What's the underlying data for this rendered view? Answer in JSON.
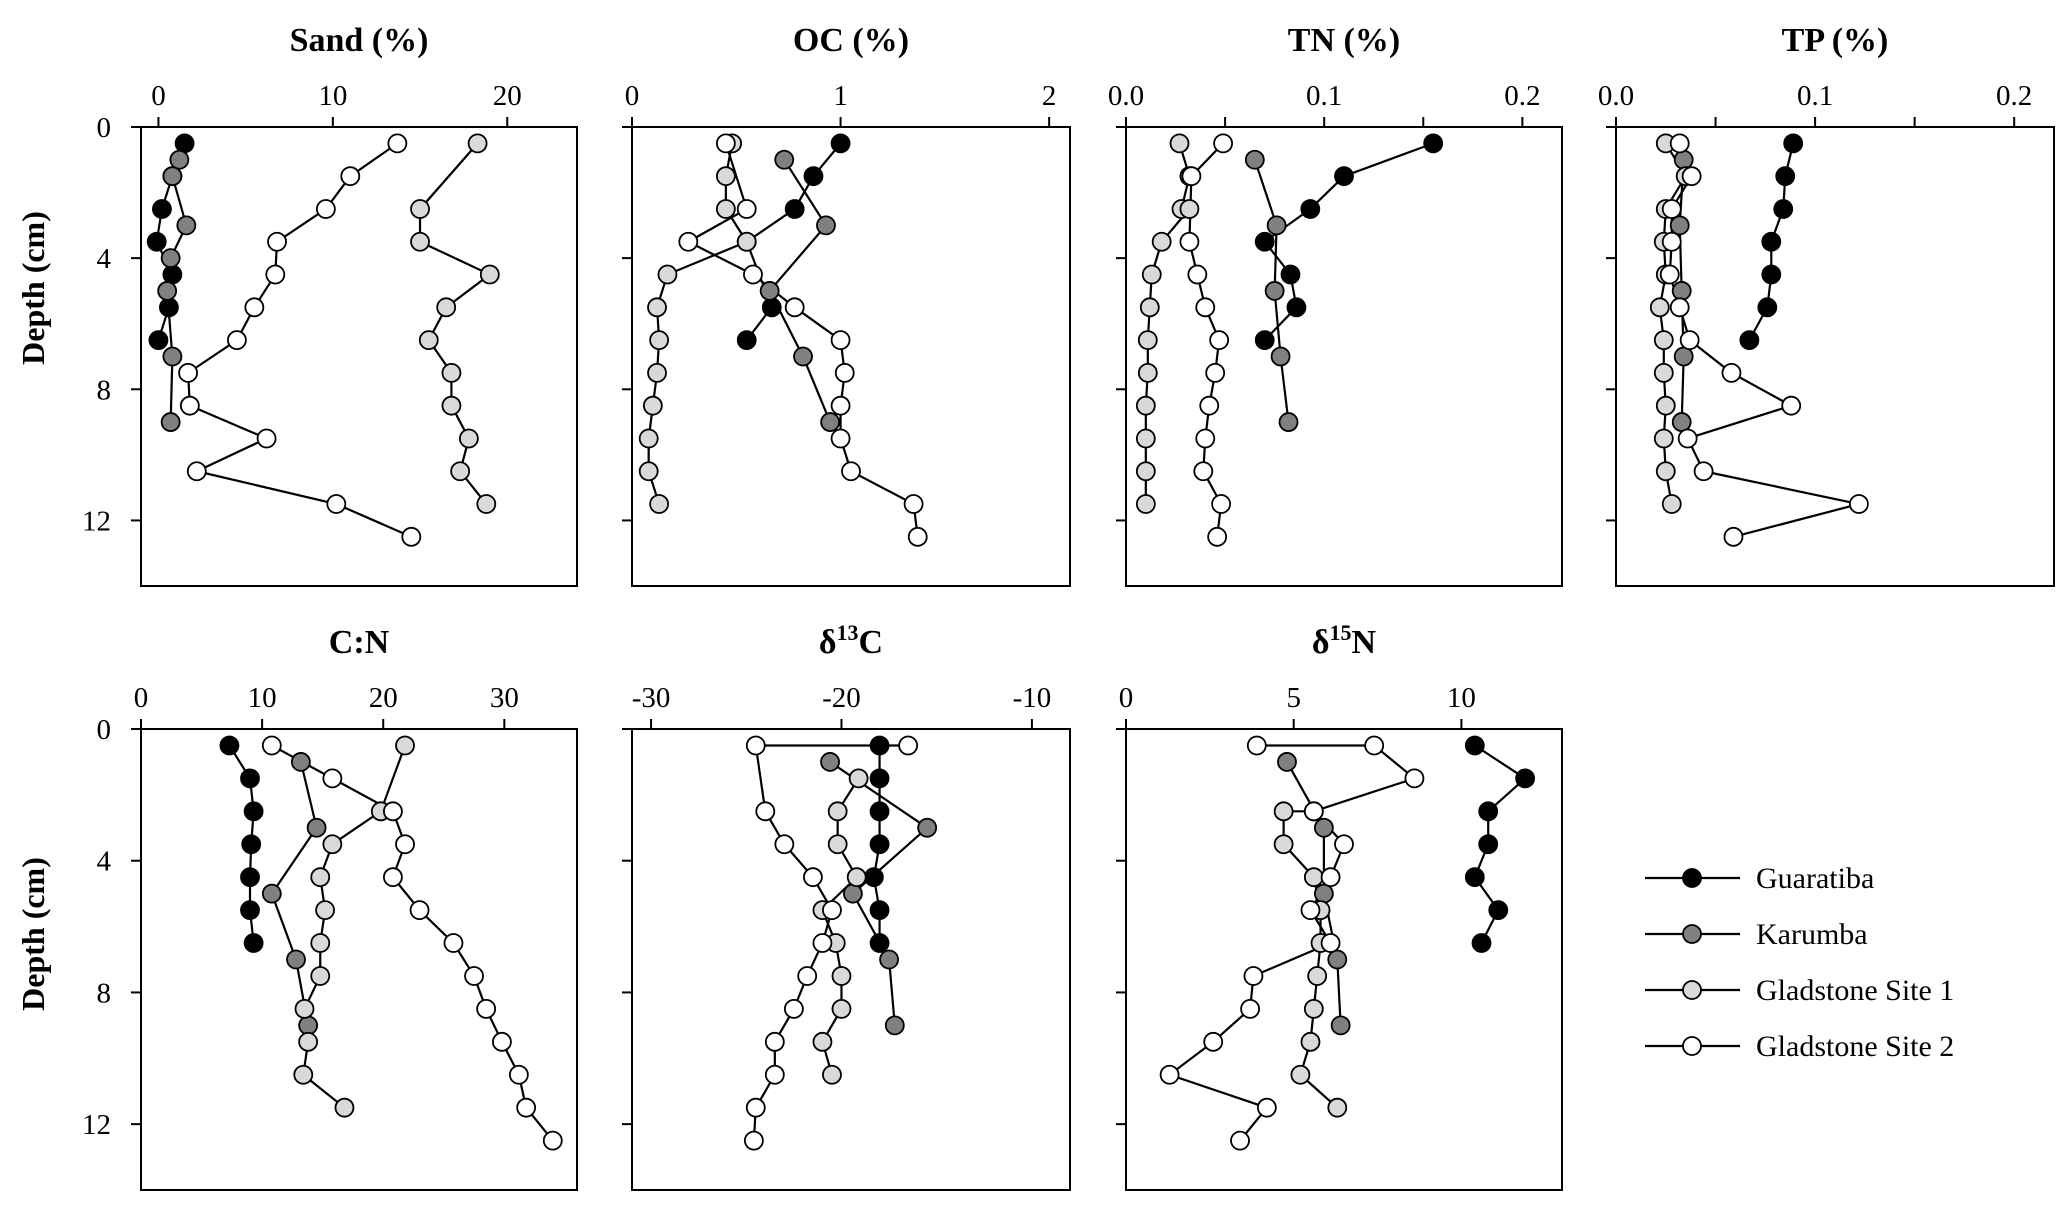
{
  "chart_data": {
    "type": "line",
    "shared_y": {
      "label": "Depth (cm)",
      "range": [
        0,
        14
      ],
      "ticks": [
        0,
        4,
        8,
        12
      ],
      "inverted": true
    },
    "legend": {
      "placement": "right",
      "entries": [
        {
          "name": "Guaratiba",
          "color": "#000000"
        },
        {
          "name": "Karumba",
          "color": "#808080"
        },
        {
          "name": "Gladstone Site 1",
          "color": "#d9d9d9"
        },
        {
          "name": "Gladstone Site 2",
          "color": "#ffffff"
        }
      ]
    },
    "panels": [
      {
        "id": "sand",
        "title_main": "Sand (%)",
        "title_sup": "",
        "title_after": "",
        "xlim": [
          -1,
          24
        ],
        "xticks": [
          0,
          10,
          20
        ],
        "xtick_labels": [
          "0",
          "10",
          "20"
        ],
        "series": [
          {
            "name": "Guaratiba",
            "x": [
              1.5,
              0.8,
              0.2,
              -0.1,
              0.8,
              0.6,
              0.0
            ],
            "y": [
              0.5,
              1.5,
              2.5,
              3.5,
              4.5,
              5.5,
              6.5
            ]
          },
          {
            "name": "Karumba",
            "x": [
              1.2,
              0.8,
              1.6,
              0.7,
              0.5,
              0.8,
              0.7
            ],
            "y": [
              1.0,
              1.5,
              3.0,
              4.0,
              5.0,
              7.0,
              9.0
            ]
          },
          {
            "name": "Gladstone Site 1",
            "x": [
              18.3,
              15.0,
              15.0,
              19.0,
              16.5,
              15.5,
              16.8,
              16.8,
              17.8,
              17.3,
              18.8
            ],
            "y": [
              0.5,
              2.5,
              3.5,
              4.5,
              5.5,
              6.5,
              7.5,
              8.5,
              9.5,
              10.5,
              11.5
            ]
          },
          {
            "name": "Gladstone Site 2",
            "x": [
              13.7,
              11.0,
              9.6,
              6.8,
              6.7,
              5.5,
              4.5,
              1.7,
              1.8,
              6.2,
              2.2,
              10.2,
              14.5
            ],
            "y": [
              0.5,
              1.5,
              2.5,
              3.5,
              4.5,
              5.5,
              6.5,
              7.5,
              8.5,
              9.5,
              10.5,
              11.5,
              12.5
            ]
          }
        ]
      },
      {
        "id": "oc",
        "title_main": "OC (%)",
        "title_sup": "",
        "title_after": "",
        "xlim": [
          0,
          2.1
        ],
        "xticks": [
          0,
          1,
          2
        ],
        "xtick_labels": [
          "0",
          "1",
          "2"
        ],
        "series": [
          {
            "name": "Guaratiba",
            "x": [
              1.0,
              0.87,
              0.78,
              0.55,
              0.67,
              0.55
            ],
            "y": [
              0.5,
              1.5,
              2.5,
              3.5,
              5.5,
              6.5
            ]
          },
          {
            "name": "Karumba",
            "x": [
              0.73,
              0.93,
              0.66,
              0.82,
              0.95
            ],
            "y": [
              1.0,
              3.0,
              5.0,
              7.0,
              9.0
            ]
          },
          {
            "name": "Gladstone Site 1",
            "x": [
              0.48,
              0.45,
              0.45,
              0.55,
              0.17,
              0.12,
              0.13,
              0.12,
              0.1,
              0.08,
              0.08,
              0.13
            ],
            "y": [
              0.5,
              1.5,
              2.5,
              3.5,
              4.5,
              5.5,
              6.5,
              7.5,
              8.5,
              9.5,
              10.5,
              11.5
            ]
          },
          {
            "name": "Gladstone Site 2",
            "x": [
              0.45,
              0.55,
              0.27,
              0.58,
              0.78,
              1.0,
              1.02,
              1.0,
              1.0,
              1.05,
              1.35,
              1.37
            ],
            "y": [
              0.5,
              2.5,
              3.5,
              4.5,
              5.5,
              6.5,
              7.5,
              8.5,
              9.5,
              10.5,
              11.5,
              12.5
            ]
          }
        ]
      },
      {
        "id": "tn",
        "title_main": "TN (%)",
        "title_sup": "",
        "title_after": "",
        "xlim": [
          0,
          0.22
        ],
        "xticks": [
          0,
          0.05,
          0.1,
          0.15,
          0.2
        ],
        "xtick_labels": [
          "0.0",
          "",
          "0.1",
          "",
          "0.2"
        ],
        "series": [
          {
            "name": "Guaratiba",
            "x": [
              0.155,
              0.11,
              0.093,
              0.07,
              0.083,
              0.086,
              0.07
            ],
            "y": [
              0.5,
              1.5,
              2.5,
              3.5,
              4.5,
              5.5,
              6.5
            ]
          },
          {
            "name": "Karumba",
            "x": [
              0.065,
              0.076,
              0.075,
              0.078,
              0.082
            ],
            "y": [
              1.0,
              3.0,
              5.0,
              7.0,
              9.0
            ]
          },
          {
            "name": "Gladstone Site 1",
            "x": [
              0.027,
              0.032,
              0.028,
              0.032,
              0.018,
              0.013,
              0.012,
              0.011,
              0.011,
              0.01,
              0.01,
              0.01,
              0.01
            ],
            "y": [
              0.5,
              1.5,
              2.5,
              2.5,
              3.5,
              4.5,
              5.5,
              6.5,
              7.5,
              8.5,
              9.5,
              10.5,
              11.5
            ]
          },
          {
            "name": "Gladstone Site 2",
            "x": [
              0.049,
              0.033,
              0.032,
              0.036,
              0.04,
              0.047,
              0.045,
              0.042,
              0.04,
              0.039,
              0.048,
              0.046
            ],
            "y": [
              0.5,
              1.5,
              3.5,
              4.5,
              5.5,
              6.5,
              7.5,
              8.5,
              9.5,
              10.5,
              11.5,
              12.5
            ]
          }
        ]
      },
      {
        "id": "tp",
        "title_main": "TP (%)",
        "title_sup": "",
        "title_after": "",
        "xlim": [
          0,
          0.22
        ],
        "xticks": [
          0,
          0.05,
          0.1,
          0.15,
          0.2
        ],
        "xtick_labels": [
          "0.0",
          "",
          "0.1",
          "",
          "0.2"
        ],
        "series": [
          {
            "name": "Guaratiba",
            "x": [
              0.089,
              0.085,
              0.084,
              0.078,
              0.078,
              0.076,
              0.067
            ],
            "y": [
              0.5,
              1.5,
              2.5,
              3.5,
              4.5,
              5.5,
              6.5
            ]
          },
          {
            "name": "Karumba",
            "x": [
              0.034,
              0.032,
              0.033,
              0.034,
              0.033
            ],
            "y": [
              1.0,
              3.0,
              5.0,
              7.0,
              9.0
            ]
          },
          {
            "name": "Gladstone Site 1",
            "x": [
              0.025,
              0.035,
              0.025,
              0.024,
              0.025,
              0.022,
              0.024,
              0.024,
              0.025,
              0.024,
              0.025,
              0.028
            ],
            "y": [
              0.5,
              1.5,
              2.5,
              3.5,
              4.5,
              5.5,
              6.5,
              7.5,
              8.5,
              9.5,
              10.5,
              11.5
            ]
          },
          {
            "name": "Gladstone Site 2",
            "x": [
              0.032,
              0.038,
              0.028,
              0.028,
              0.027,
              0.032,
              0.037,
              0.058,
              0.088,
              0.036,
              0.044,
              0.122,
              0.059
            ],
            "y": [
              0.5,
              1.5,
              2.5,
              3.5,
              4.5,
              5.5,
              6.5,
              7.5,
              8.5,
              9.5,
              10.5,
              11.5,
              12.5
            ]
          }
        ]
      },
      {
        "id": "cn",
        "title_main": "C:N",
        "title_sup": "",
        "title_after": "",
        "xlim": [
          0,
          36
        ],
        "xticks": [
          0,
          10,
          20,
          30
        ],
        "xtick_labels": [
          "0",
          "10",
          "20",
          "30"
        ],
        "series": [
          {
            "name": "Guaratiba",
            "x": [
              7.3,
              9.0,
              9.3,
              9.1,
              9.0,
              9.0,
              9.3
            ],
            "y": [
              0.5,
              1.5,
              2.5,
              3.5,
              4.5,
              5.5,
              6.5
            ]
          },
          {
            "name": "Karumba",
            "x": [
              13.2,
              14.5,
              10.8,
              12.8,
              13.8
            ],
            "y": [
              1.0,
              3.0,
              5.0,
              7.0,
              9.0
            ]
          },
          {
            "name": "Gladstone Site 1",
            "x": [
              21.8,
              19.8,
              15.8,
              14.8,
              15.2,
              14.8,
              14.8,
              13.5,
              13.8,
              13.4,
              16.8
            ],
            "y": [
              0.5,
              2.5,
              3.5,
              4.5,
              5.5,
              6.5,
              7.5,
              8.5,
              9.5,
              10.5,
              11.5
            ]
          },
          {
            "name": "Gladstone Site 2",
            "x": [
              10.8,
              15.8,
              20.8,
              21.8,
              20.8,
              23.0,
              25.8,
              27.5,
              28.5,
              29.8,
              31.2,
              31.8,
              34.0
            ],
            "y": [
              0.5,
              1.5,
              2.5,
              3.5,
              4.5,
              5.5,
              6.5,
              7.5,
              8.5,
              9.5,
              10.5,
              11.5,
              12.5
            ]
          }
        ]
      },
      {
        "id": "d13c",
        "title_main": "δ",
        "title_sup": "13",
        "title_after": "C",
        "xlim": [
          -31,
          -8
        ],
        "xticks": [
          -30,
          -20,
          -10
        ],
        "xtick_labels": [
          "-30",
          "-20",
          "-10"
        ],
        "series": [
          {
            "name": "Guaratiba",
            "x": [
              -18.0,
              -18.0,
              -18.0,
              -18.0,
              -18.3,
              -18.0,
              -18.0
            ],
            "y": [
              0.5,
              1.5,
              2.5,
              3.5,
              4.5,
              5.5,
              6.5
            ]
          },
          {
            "name": "Karumba",
            "x": [
              -20.6,
              -15.5,
              -19.4,
              -17.5,
              -17.2
            ],
            "y": [
              1.0,
              3.0,
              5.0,
              7.0,
              9.0
            ]
          },
          {
            "name": "Gladstone Site 1",
            "x": [
              -19.1,
              -20.2,
              -20.2,
              -19.2,
              -21.0,
              -20.3,
              -20.0,
              -20.0,
              -21.0,
              -20.5
            ],
            "y": [
              1.5,
              2.5,
              3.5,
              4.5,
              5.5,
              6.5,
              7.5,
              8.5,
              9.5,
              10.5
            ]
          },
          {
            "name": "Gladstone Site 2",
            "x": [
              -16.5,
              -24.5,
              -24.0,
              -23.0,
              -21.5,
              -20.5,
              -21.0,
              -21.8,
              -22.5,
              -23.5,
              -23.5,
              -24.5,
              -24.6
            ],
            "y": [
              0.5,
              0.5,
              2.5,
              3.5,
              4.5,
              5.5,
              6.5,
              7.5,
              8.5,
              9.5,
              10.5,
              11.5,
              12.5
            ]
          }
        ]
      },
      {
        "id": "d15n",
        "title_main": "δ",
        "title_sup": "15",
        "title_after": "N",
        "xlim": [
          0,
          13
        ],
        "xticks": [
          0,
          5,
          10
        ],
        "xtick_labels": [
          "0",
          "5",
          "10"
        ],
        "series": [
          {
            "name": "Guaratiba",
            "x": [
              10.4,
              11.9,
              10.8,
              10.8,
              10.4,
              11.1,
              10.6
            ],
            "y": [
              0.5,
              1.5,
              2.5,
              3.5,
              4.5,
              5.5,
              6.5
            ]
          },
          {
            "name": "Karumba",
            "x": [
              4.8,
              5.9,
              5.9,
              6.3,
              6.4
            ],
            "y": [
              1.0,
              3.0,
              5.0,
              7.0,
              9.0
            ]
          },
          {
            "name": "Gladstone Site 1",
            "x": [
              5.6,
              4.7,
              4.7,
              5.6,
              5.8,
              5.8,
              5.7,
              5.6,
              5.5,
              5.2,
              6.3
            ],
            "y": [
              2.5,
              2.5,
              3.5,
              4.5,
              5.5,
              6.5,
              7.5,
              8.5,
              9.5,
              10.5,
              11.5
            ]
          },
          {
            "name": "Gladstone Site 2",
            "x": [
              3.9,
              7.4,
              8.6,
              5.6,
              6.5,
              6.1,
              5.5,
              6.1,
              3.8,
              3.7,
              2.6,
              1.3,
              4.2,
              3.4
            ],
            "y": [
              0.5,
              0.5,
              1.5,
              2.5,
              3.5,
              4.5,
              5.5,
              6.5,
              7.5,
              8.5,
              9.5,
              10.5,
              11.5,
              12.5
            ]
          }
        ]
      }
    ]
  }
}
